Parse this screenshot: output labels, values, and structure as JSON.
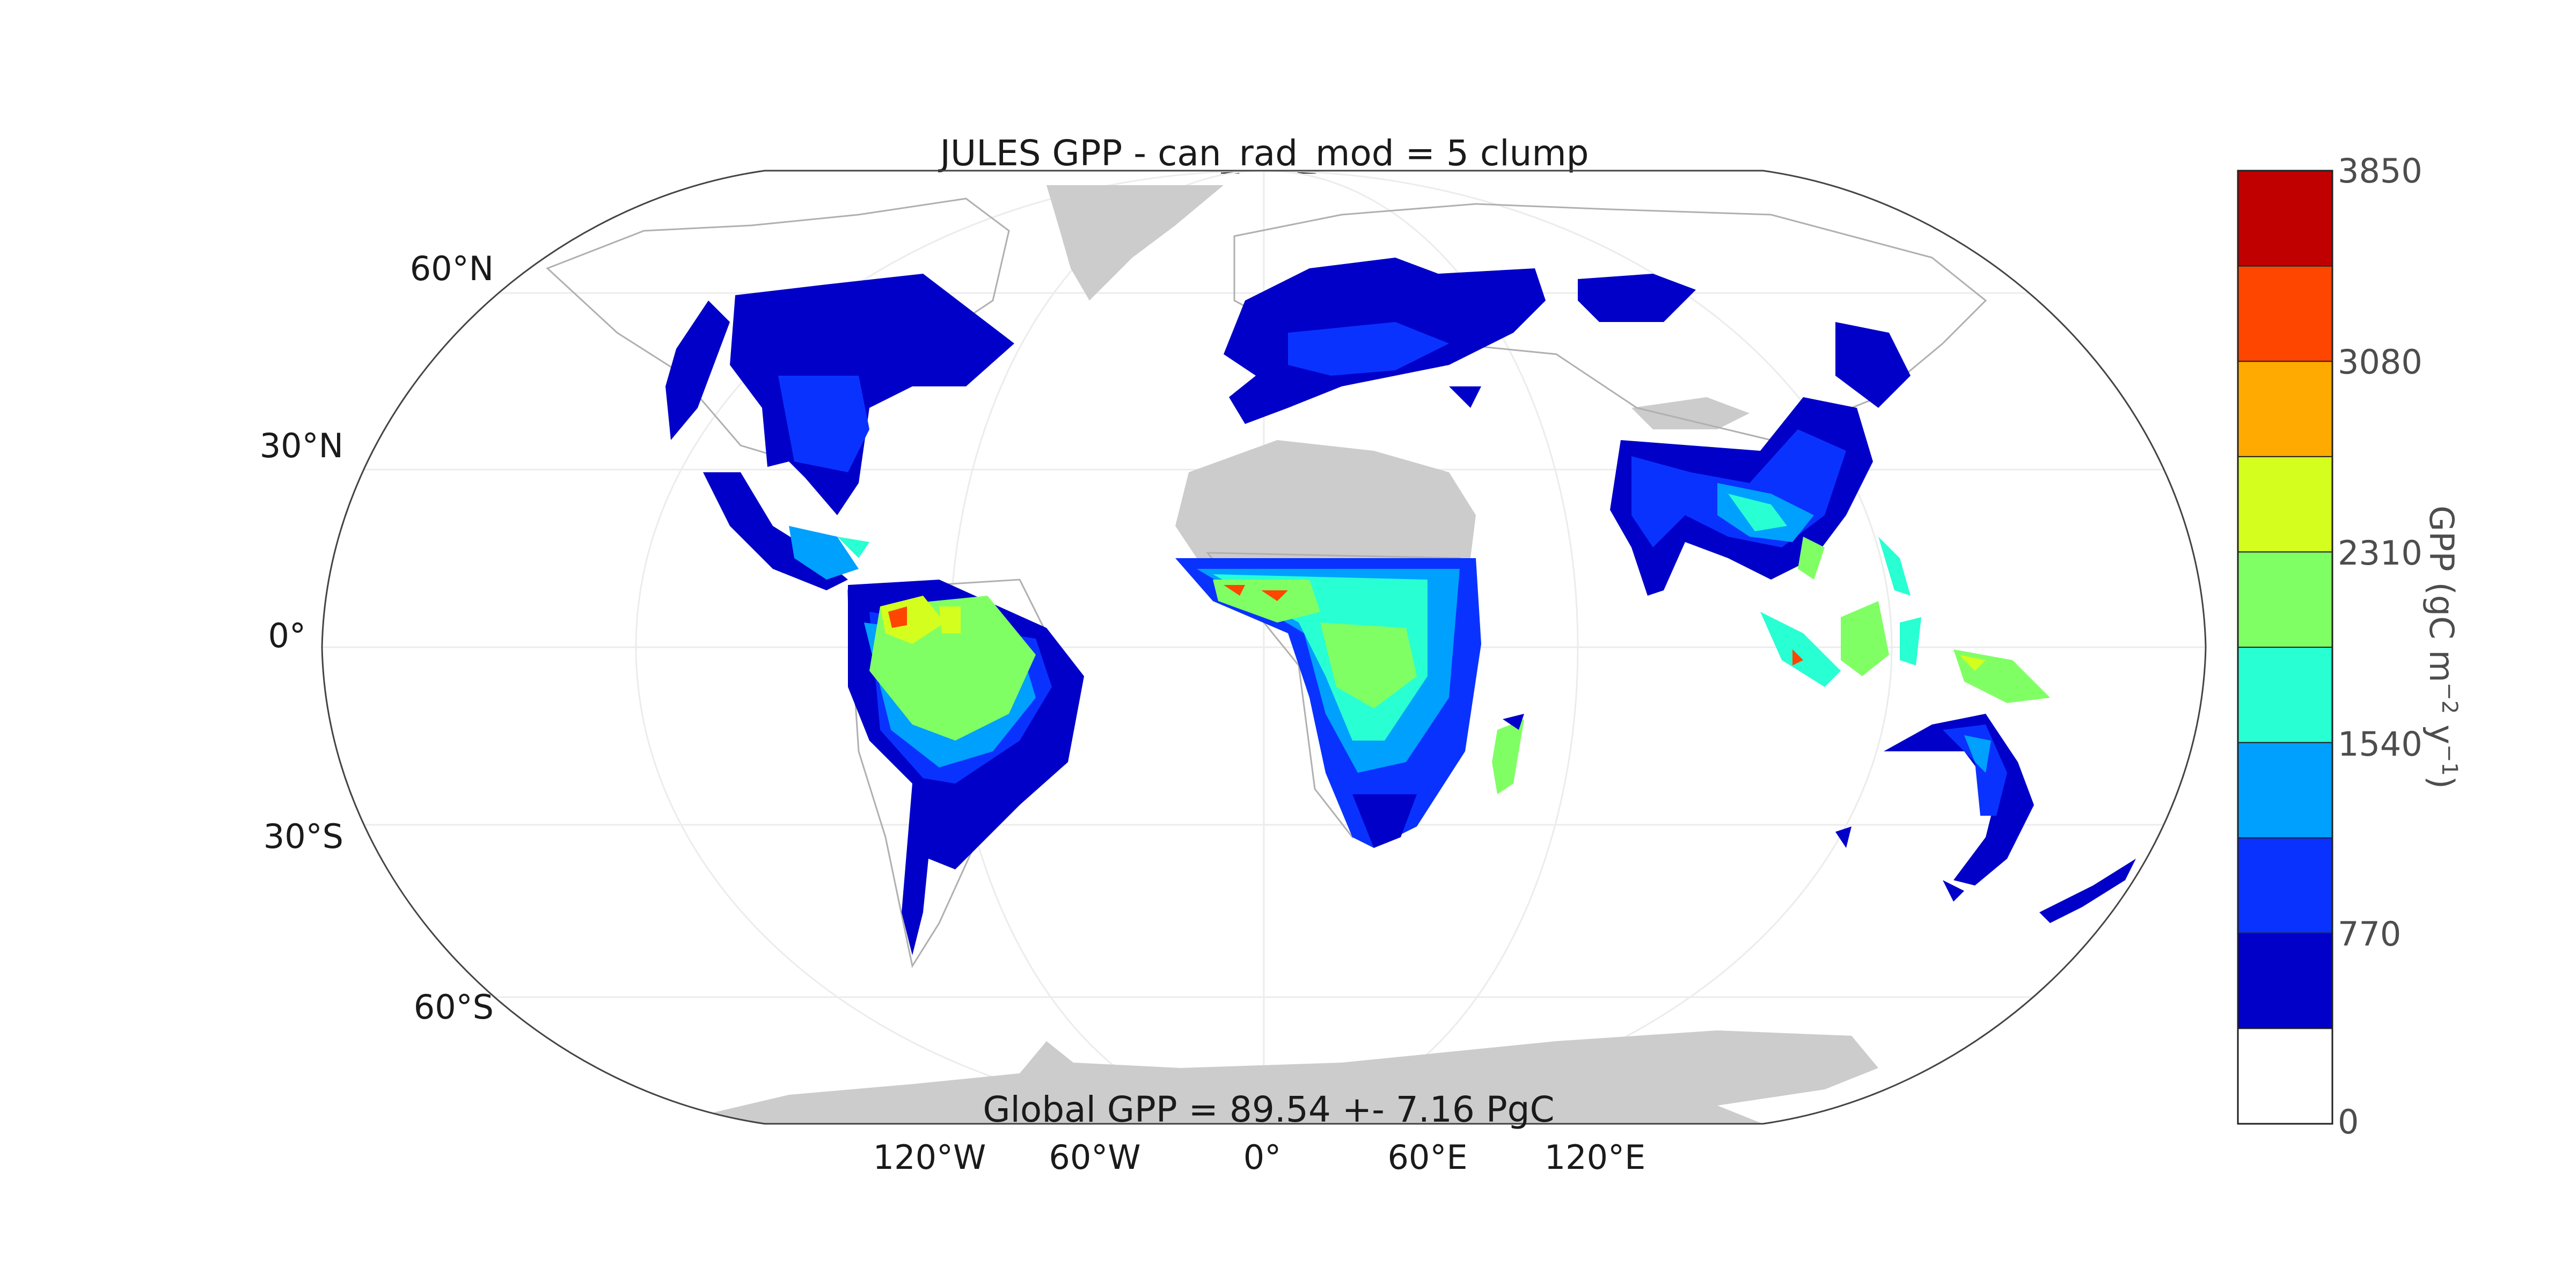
{
  "title": "JULES GPP - can_rad_mod = 5 clump",
  "subtitle": "Global GPP = 89.54 +- 7.16 PgC",
  "lat_labels": [
    "60°N",
    "30°N",
    "0°",
    "30°S",
    "60°S"
  ],
  "lon_labels": [
    "120°W",
    "60°W",
    "0°",
    "60°E",
    "120°E"
  ],
  "colorbar": {
    "label_main": "GPP (gC m",
    "label_sup1": "−2",
    "label_mid": " y",
    "label_sup2": "−1",
    "label_end": ")",
    "tick_labels": [
      "3850",
      "3080",
      "2310",
      "1540",
      "770",
      "0"
    ],
    "bin_colors": [
      "#ffffff",
      "#0000c8",
      "#0a32ff",
      "#00a0ff",
      "#28ffd2",
      "#80ff64",
      "#d4ff1e",
      "#ffaa00",
      "#ff4600",
      "#c00000"
    ]
  },
  "colors": {
    "no_data_land": "#cccccc",
    "graticule": "#e8e8e8",
    "frame": "#444444"
  },
  "chart_data": {
    "type": "heatmap",
    "projection": "robinson",
    "title": "JULES GPP - can_rad_mod = 5 clump",
    "value_range": [
      0,
      3850
    ],
    "colorbar_ticks": [
      0,
      770,
      1540,
      2310,
      3080,
      3850
    ],
    "colorbar_bins": 10,
    "units": "gC m-2 y-1"
  }
}
